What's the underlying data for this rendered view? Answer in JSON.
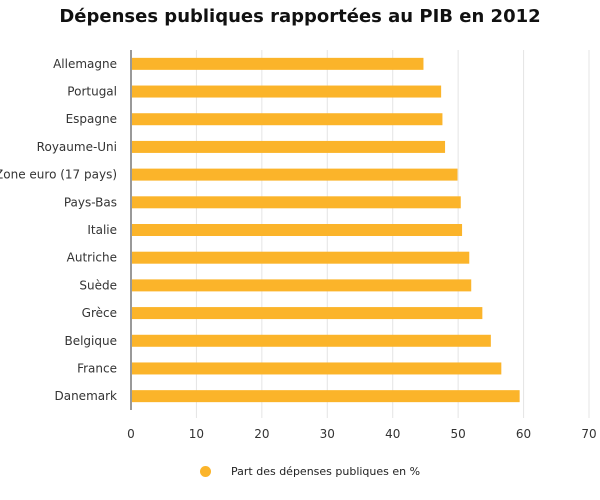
{
  "chart_data": {
    "type": "bar",
    "orientation": "horizontal",
    "title": "Dépenses publiques rapportées au PIB en 2012",
    "categories": [
      "Allemagne",
      "Portugal",
      "Espagne",
      "Royaume-Uni",
      "Zone euro (17 pays)",
      "Pays-Bas",
      "Italie",
      "Autriche",
      "Suède",
      "Grèce",
      "Belgique",
      "France",
      "Danemark"
    ],
    "series": [
      {
        "name": "Part des dépenses publiques en %",
        "values": [
          44.7,
          47.4,
          47.6,
          48.0,
          49.9,
          50.4,
          50.6,
          51.7,
          52.0,
          53.7,
          55.0,
          56.6,
          59.4
        ],
        "color": "#fbb42a"
      }
    ],
    "xlim": [
      0,
      70
    ],
    "xticks": [
      0,
      10,
      20,
      30,
      40,
      50,
      60,
      70
    ],
    "grid": "vertical",
    "legend_position": "bottom"
  }
}
